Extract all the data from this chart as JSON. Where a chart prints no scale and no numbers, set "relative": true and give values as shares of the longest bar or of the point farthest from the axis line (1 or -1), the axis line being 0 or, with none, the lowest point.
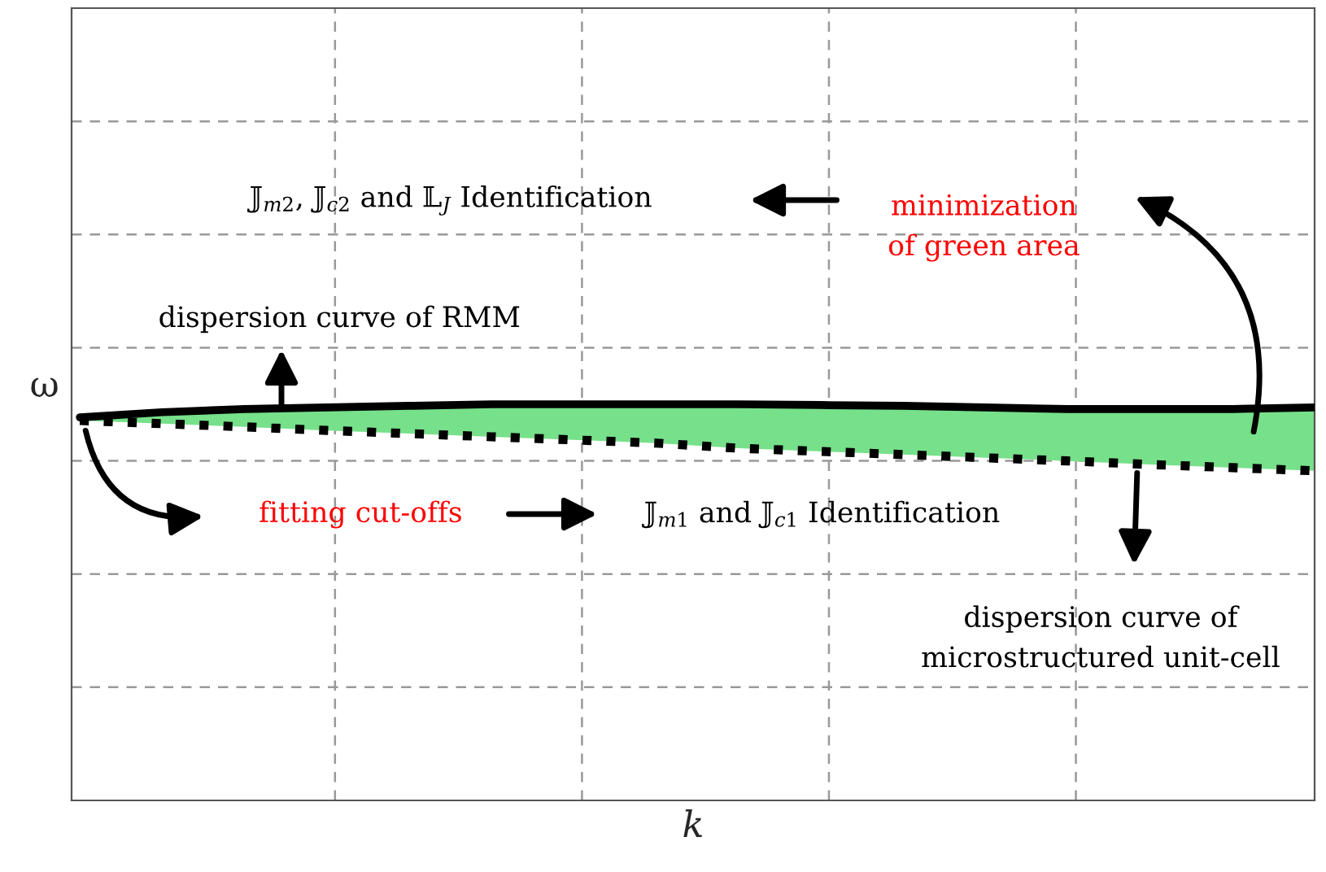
{
  "chart_data": {
    "type": "line",
    "relative": true,
    "xlabel": "k",
    "ylabel": "ω",
    "categories": [
      null,
      null,
      null,
      null,
      null,
      null,
      null,
      null,
      null,
      null,
      null,
      null,
      null,
      null,
      null,
      null
    ],
    "series": [
      {
        "color": "#000000",
        "line_style": "solid",
        "values": [
          0.967,
          0.98,
          0.988,
          0.992,
          0.996,
          1,
          1,
          1,
          1,
          0.998,
          0.996,
          0.992,
          0.988,
          0.988,
          0.988,
          0.992
        ],
        "lower": [
          0.959,
          0.951,
          0.943,
          0.934,
          0.926,
          0.918,
          0.91,
          0.902,
          0.889,
          0.881,
          0.873,
          0.865,
          0.857,
          0.848,
          0.84,
          0.832
        ],
        "upper": [
          0.967,
          0.98,
          0.988,
          0.992,
          0.996,
          1,
          1,
          1,
          1,
          0.998,
          0.996,
          0.992,
          0.988,
          0.988,
          0.988,
          0.992
        ]
      },
      {
        "color": "#000000",
        "line_style": "dotted",
        "values": [
          0.959,
          0.951,
          0.943,
          0.934,
          0.926,
          0.918,
          0.91,
          0.902,
          0.889,
          0.881,
          0.873,
          0.865,
          0.857,
          0.848,
          0.84,
          0.832
        ]
      }
    ],
    "grid": true,
    "annotations": [
      "𝕁$_{m2}$, 𝕁$_{c2}$ and 𝕃$_{J}$ Identification",
      "minimization\nof green area",
      "dispersion curve of RMM",
      "fitting cut-offs",
      "𝕁$_{m1}$ and 𝕁$_{c1}$ Identification",
      "dispersion curve of\nmicrostructured unit-cell"
    ]
  }
}
